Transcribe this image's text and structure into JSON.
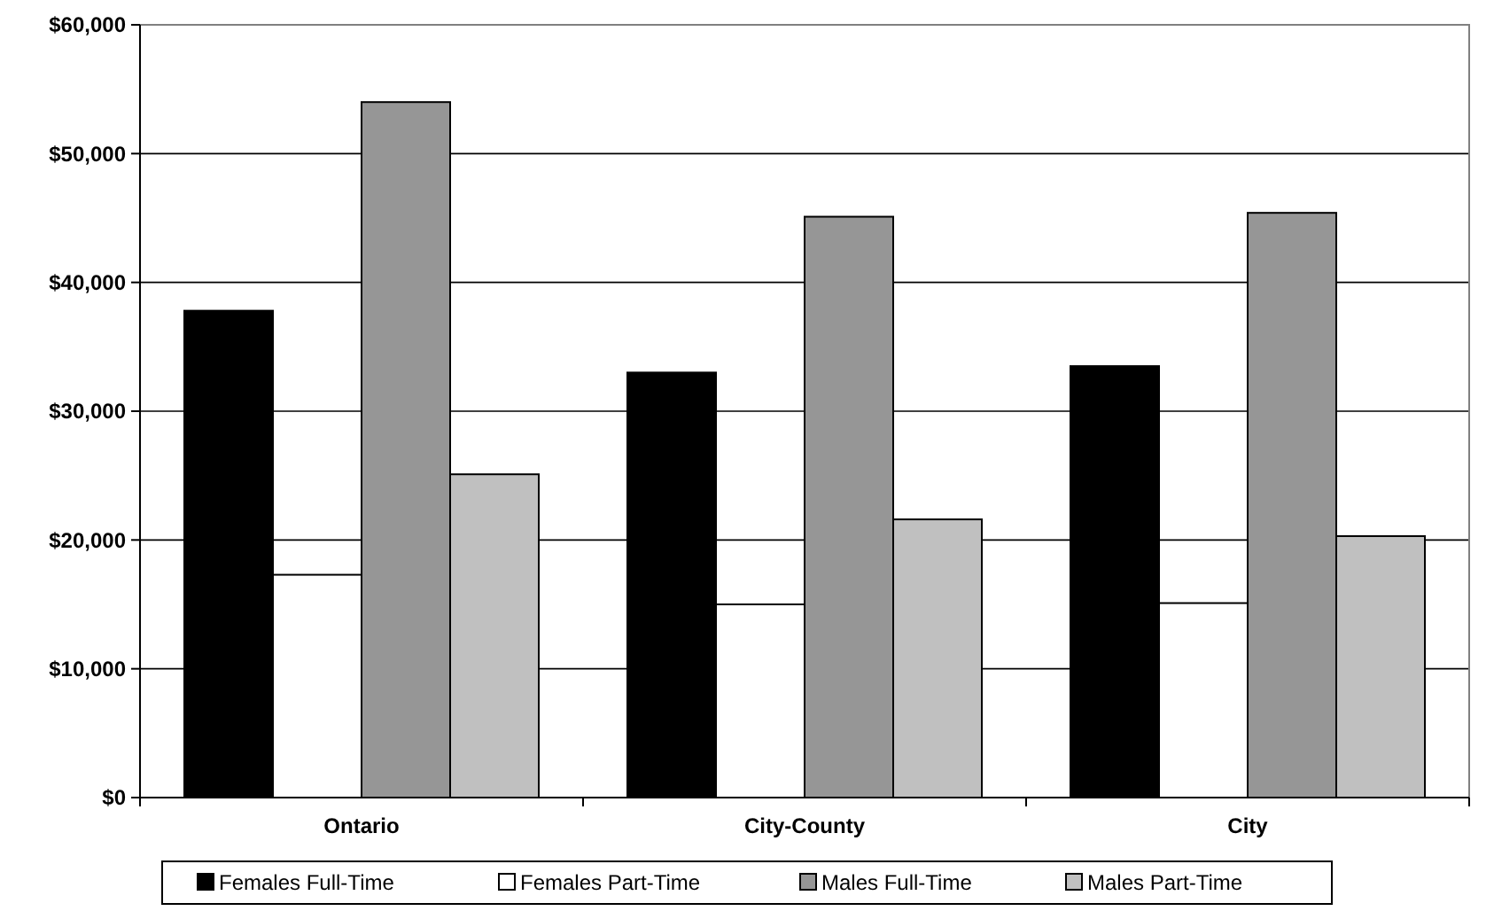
{
  "chart_data": {
    "type": "bar",
    "categories": [
      "Ontario",
      "City-County",
      "City"
    ],
    "series": [
      {
        "name": "Females Full-Time",
        "color": "#000000",
        "values": [
          37800,
          33000,
          33500
        ]
      },
      {
        "name": "Females Part-Time",
        "color": "#ffffff",
        "values": [
          17300,
          15000,
          15100
        ]
      },
      {
        "name": "Males Full-Time",
        "color": "#969696",
        "values": [
          54000,
          45100,
          45400
        ]
      },
      {
        "name": "Males Part-Time",
        "color": "#c0c0c0",
        "values": [
          25100,
          21600,
          20300
        ]
      }
    ],
    "ylim": [
      0,
      60000
    ],
    "yticks": [
      {
        "value": 0,
        "label": "$0"
      },
      {
        "value": 10000,
        "label": "$10,000"
      },
      {
        "value": 20000,
        "label": "$20,000"
      },
      {
        "value": 30000,
        "label": "$30,000"
      },
      {
        "value": 40000,
        "label": "$40,000"
      },
      {
        "value": 50000,
        "label": "$50,000"
      },
      {
        "value": 60000,
        "label": "$60,000"
      }
    ],
    "grid": "y",
    "legend": "bottom"
  }
}
